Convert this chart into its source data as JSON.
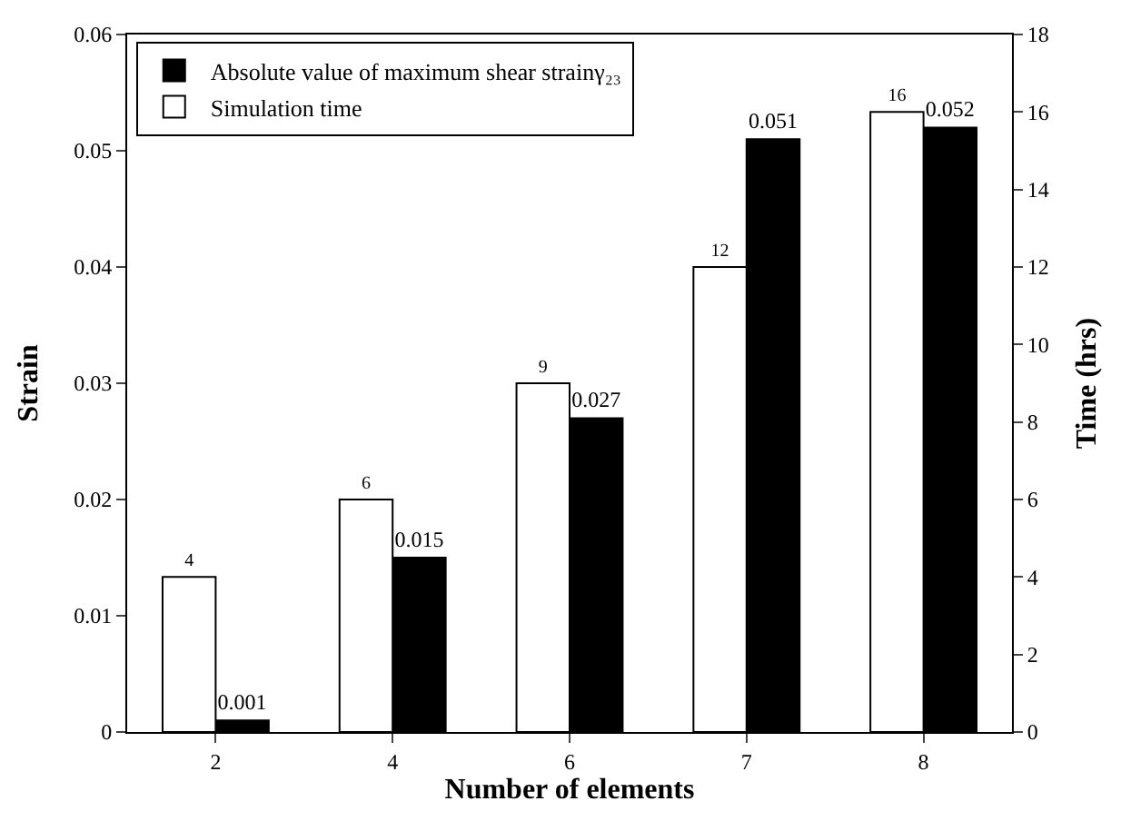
{
  "chart_data": {
    "type": "bar",
    "categories": [
      "2",
      "4",
      "6",
      "7",
      "8"
    ],
    "xlabel": "Number of elements",
    "ylabel": "Strain",
    "y2label": "Time (hrs)",
    "series": [
      {
        "name": "Absolute value of maximum shear strainγ₂₃",
        "color": "#000000",
        "values": [
          0.001,
          0.015,
          0.027,
          0.051,
          0.052
        ]
      },
      {
        "name": "Simulation time",
        "color": "#ffffff",
        "axis": "y2",
        "values": [
          4,
          6,
          9,
          12,
          16
        ]
      }
    ],
    "ylim": [
      0,
      0.06
    ],
    "yticks": [
      0,
      0.01,
      0.02,
      0.03,
      0.04,
      0.05,
      0.06
    ],
    "y2lim": [
      0,
      18
    ],
    "y2ticks": [
      0,
      2,
      4,
      6,
      8,
      10,
      12,
      14,
      16,
      18
    ],
    "data_labels": true,
    "legend": "top left"
  }
}
